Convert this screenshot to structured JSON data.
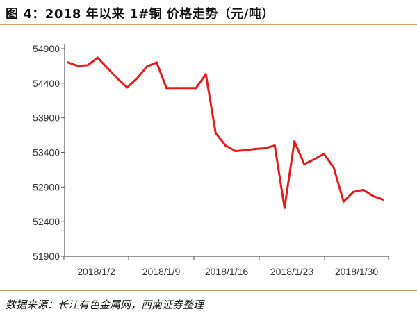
{
  "header": {
    "title": "图 4：2018 年以来 1#铜 价格走势（元/吨）"
  },
  "footer": {
    "source": "数据来源：长江有色金属网，西南证券整理"
  },
  "chart_data": {
    "type": "line",
    "x_tick_labels": [
      "2018/1/2",
      "2018/1/9",
      "2018/1/16",
      "2018/1/23",
      "2018/1/30"
    ],
    "y_tick_labels": [
      "51900",
      "52400",
      "52900",
      "53400",
      "53900",
      "54400",
      "54900"
    ],
    "ylim": [
      51900,
      54900
    ],
    "grid": false,
    "series": [
      {
        "color": "#e31b1b",
        "x": [
          0,
          1,
          2,
          3,
          4,
          5,
          6,
          7,
          8,
          9,
          10,
          11,
          12,
          13,
          14,
          15,
          16,
          17,
          18,
          19,
          20,
          21,
          22,
          23,
          24,
          25,
          26,
          27,
          28,
          29,
          30,
          31,
          32
        ],
        "values": [
          54700,
          54650,
          54660,
          54770,
          54620,
          54470,
          54340,
          54470,
          54640,
          54700,
          54330,
          54330,
          54330,
          54330,
          54530,
          53680,
          53500,
          53420,
          53430,
          53450,
          53460,
          53500,
          52600,
          53560,
          53230,
          53300,
          53380,
          53180,
          52690,
          52830,
          52860,
          52770,
          52720
        ]
      }
    ]
  }
}
